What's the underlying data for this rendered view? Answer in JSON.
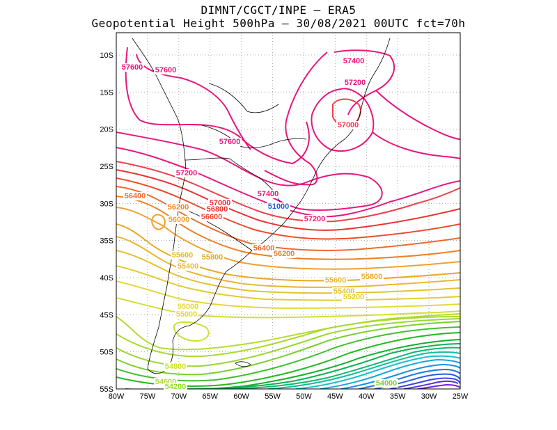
{
  "title": {
    "line1": "DIMNT/CGCT/INPE  –  ERA5",
    "line2": "Geopotential Height 500hPa –  30/08/2021 00UTC fct=70h"
  },
  "axes": {
    "lon_labels": [
      "80W",
      "75W",
      "70W",
      "65W",
      "60W",
      "55W",
      "50W",
      "45W",
      "40W",
      "35W",
      "30W",
      "25W"
    ],
    "lat_labels": [
      "10S",
      "15S",
      "20S",
      "25S",
      "30S",
      "35S",
      "40S",
      "45S",
      "50S",
      "55S"
    ],
    "lon_range": [
      -80,
      -25
    ],
    "lat_range": [
      -55,
      -7
    ]
  },
  "colors": {
    "c57600": "#e8177c",
    "c57400": "#e8177c",
    "c57200": "#e8177c",
    "c57000": "#f0404a",
    "c56800": "#ec3030",
    "c56600": "#ee4a2e",
    "c56400": "#ee6a2a",
    "c56200": "#f08028",
    "c56000": "#f0a030",
    "c55800": "#e8a828",
    "c55600": "#e8b830",
    "c55400": "#e6c030",
    "c55200": "#e2cc34",
    "c55000": "#e4d838",
    "c54800": "#cfe030",
    "c54600": "#b4dc30",
    "c54200": "#9ad830",
    "c54000": "#7ad030",
    "green": "#20b820",
    "cyan": "#18c0c8",
    "blue": "#2a5ae0",
    "purple": "#7a1ae0",
    "coast": "#000000",
    "grid": "#888888"
  },
  "contour_labels": [
    {
      "text": "57600",
      "color": "#e8177c"
    },
    {
      "text": "57600",
      "color": "#e8177c"
    },
    {
      "text": "57400",
      "color": "#e8177c"
    },
    {
      "text": "57200",
      "color": "#e8177c"
    },
    {
      "text": "57000",
      "color": "#f0404a"
    },
    {
      "text": "57600",
      "color": "#e8177c"
    },
    {
      "text": "57200",
      "color": "#e8177c"
    },
    {
      "text": "57400",
      "color": "#e8177c"
    },
    {
      "text": "57200",
      "color": "#e8177c"
    },
    {
      "text": "57000",
      "color": "#ec3030"
    },
    {
      "text": "56800",
      "color": "#ec3030"
    },
    {
      "text": "56400",
      "color": "#ee6a2a"
    },
    {
      "text": "56200",
      "color": "#f08028"
    },
    {
      "text": "56600",
      "color": "#ee4a2e"
    },
    {
      "text": "56000",
      "color": "#f0a030"
    },
    {
      "text": "56400",
      "color": "#ee6a2a"
    },
    {
      "text": "56200",
      "color": "#f08028"
    },
    {
      "text": "55600",
      "color": "#e8b830"
    },
    {
      "text": "55800",
      "color": "#e8a828"
    },
    {
      "text": "55400",
      "color": "#e6c030"
    },
    {
      "text": "55800",
      "color": "#e8a828"
    },
    {
      "text": "55600",
      "color": "#e8b830"
    },
    {
      "text": "55400",
      "color": "#e6c030"
    },
    {
      "text": "55200",
      "color": "#e2cc34"
    },
    {
      "text": "55000",
      "color": "#e4d838"
    },
    {
      "text": "55000",
      "color": "#e4d838"
    },
    {
      "text": "54800",
      "color": "#cfe030"
    },
    {
      "text": "54600",
      "color": "#b4dc30"
    },
    {
      "text": "54200",
      "color": "#9ad830"
    },
    {
      "text": "54000",
      "color": "#7ad030"
    },
    {
      "text": "51000",
      "color": "#2a5ae0"
    }
  ]
}
